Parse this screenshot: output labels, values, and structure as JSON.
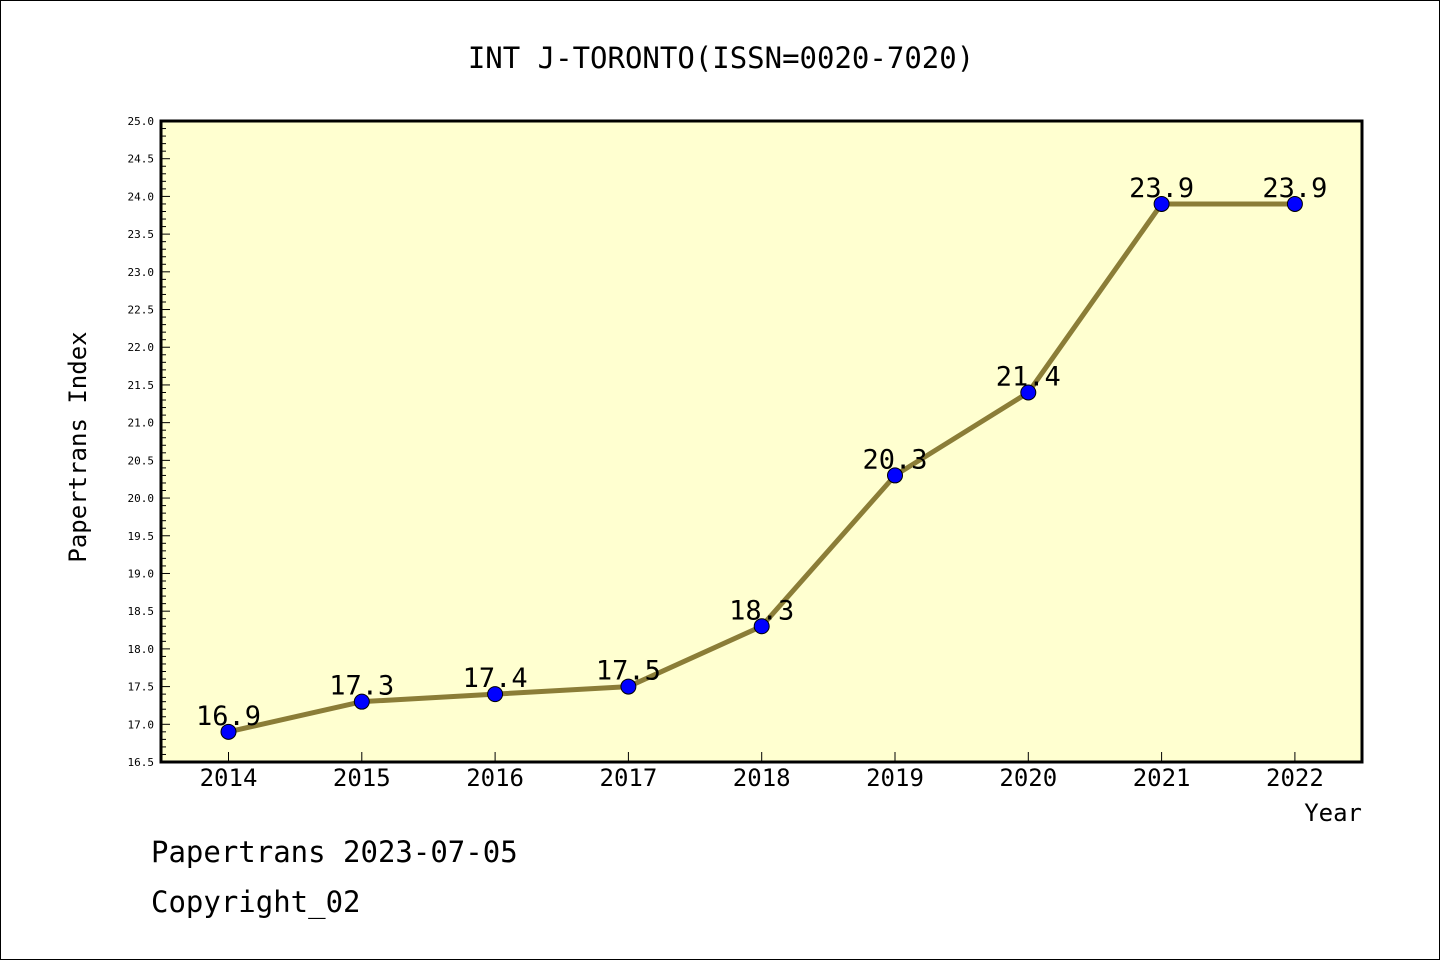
{
  "chart_data": {
    "type": "line",
    "title": "INT J-TORONTO(ISSN=0020-7020)",
    "xlabel": "Year",
    "ylabel": "Papertrans Index",
    "categories": [
      "2014",
      "2015",
      "2016",
      "2017",
      "2018",
      "2019",
      "2020",
      "2021",
      "2022"
    ],
    "series": [
      {
        "values": [
          16.9,
          17.3,
          17.4,
          17.5,
          18.3,
          20.3,
          21.4,
          23.9,
          23.9
        ]
      }
    ],
    "data_labels": [
      "16.9",
      "17.3",
      "17.4",
      "17.5",
      "18.3",
      "20.3",
      "21.4",
      "23.9",
      "23.9"
    ],
    "ylim": [
      16.5,
      25.0
    ],
    "y_tick_step": 0.5,
    "y_tick_labels": [
      "16.5",
      "17.0",
      "17.5",
      "18.0",
      "18.5",
      "19.0",
      "19.5",
      "20.0",
      "20.5",
      "21.0",
      "21.5",
      "22.0",
      "22.5",
      "23.0",
      "23.5",
      "24.0",
      "24.5",
      "25.0"
    ],
    "grid": false,
    "legend": "none",
    "colors": {
      "plot_background": "#FFFFD0",
      "line": "#8B7D37",
      "marker": "#0000FF",
      "axis": "#000000"
    }
  },
  "footer": {
    "line1": "Papertrans 2023-07-05",
    "line2": "Copyright_02"
  }
}
